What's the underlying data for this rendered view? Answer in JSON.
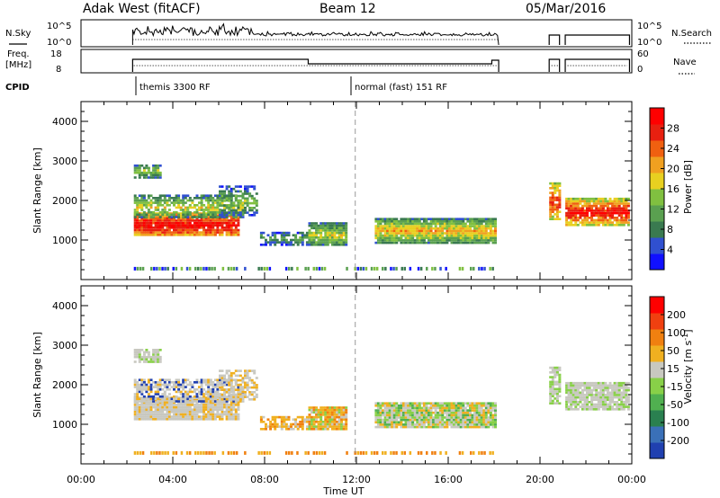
{
  "header": {
    "radar": "Adak West (fitACF)",
    "beam": "Beam 12",
    "date": "05/Mar/2016"
  },
  "panels": {
    "nsky": {
      "left_label": "N.Sky",
      "right_label": "N.Search",
      "left_ticks": [
        "10^5",
        "10^0"
      ],
      "right_ticks": [
        "10^5",
        "10^0"
      ]
    },
    "freq": {
      "left_label_1": "Freq.",
      "left_label_2": "[MHz]",
      "right_label": "Nave",
      "left_ticks": [
        "18",
        "8"
      ],
      "right_ticks": [
        "60",
        "0"
      ]
    },
    "cpid": {
      "label": "CPID",
      "segments": [
        {
          "start_hour": 2.25,
          "label": "themis 3300 RF"
        },
        {
          "start_hour": 11.95,
          "label": "normal (fast) 151 RF"
        }
      ]
    }
  },
  "chart_data": [
    {
      "type": "heatmap",
      "name": "power",
      "ylabel": "Slant Range [km]",
      "ylim": [
        0,
        4500
      ],
      "yticks": [
        "1000",
        "2000",
        "3000",
        "4000"
      ],
      "colorbar": {
        "label": "Power [dB]",
        "ticks": [
          "4",
          "8",
          "12",
          "16",
          "20",
          "24",
          "28"
        ],
        "colors": [
          "#1010ff",
          "#3050d0",
          "#3a7a50",
          "#5aa050",
          "#80c040",
          "#e8d020",
          "#f0a020",
          "#f06010",
          "#e82010",
          "#ff0000"
        ]
      }
    },
    {
      "type": "heatmap",
      "name": "velocity",
      "ylabel": "Slant Range [km]",
      "ylim": [
        0,
        4500
      ],
      "yticks": [
        "1000",
        "2000",
        "3000",
        "4000"
      ],
      "colorbar": {
        "label": "Velocity [m s",
        "label_sup": "-1",
        "label_end": "]",
        "ticks": [
          "200",
          "100",
          "50",
          "15",
          "-15",
          "-50",
          "-100",
          "-200"
        ],
        "colors": [
          "#2040b0",
          "#3a70b8",
          "#2a8050",
          "#50b050",
          "#88d048",
          "#c8c8c0",
          "#f0b020",
          "#f08010",
          "#f04010",
          "#ff0000"
        ]
      }
    }
  ],
  "xaxis": {
    "label": "Time UT",
    "ticks": [
      "00:00",
      "04:00",
      "08:00",
      "12:00",
      "16:00",
      "20:00",
      "00:00"
    ],
    "range_hours": [
      0,
      24
    ]
  }
}
